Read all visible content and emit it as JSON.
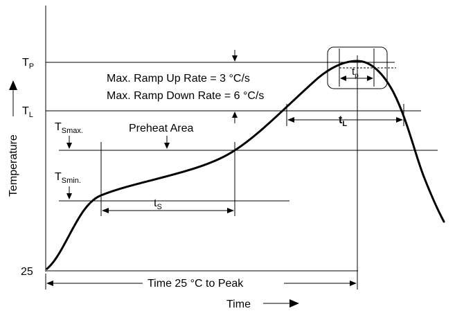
{
  "labels": {
    "tp_main": "T",
    "tp_sub": "P",
    "tl_main": "T",
    "tl_sub": "L",
    "tsmax_main": "T",
    "tsmax_sub": "Smax.",
    "tsmin_main": "T",
    "tsmin_sub": "Smin.",
    "y25": "25",
    "ramp_up": "Max. Ramp Up Rate = 3 °C/s",
    "ramp_down": "Max. Ramp Down Rate = 6 °C/s",
    "preheat": "Preheat Area",
    "ts_main": "t",
    "ts_sub": "S",
    "tl_dur_main": "t",
    "tl_dur_sub": "L",
    "tp_dur_main": "t",
    "tp_dur_sub": "p",
    "time_to_peak": "Time 25 °C to Peak",
    "x_axis": "Time",
    "y_axis": "Temperature"
  }
}
